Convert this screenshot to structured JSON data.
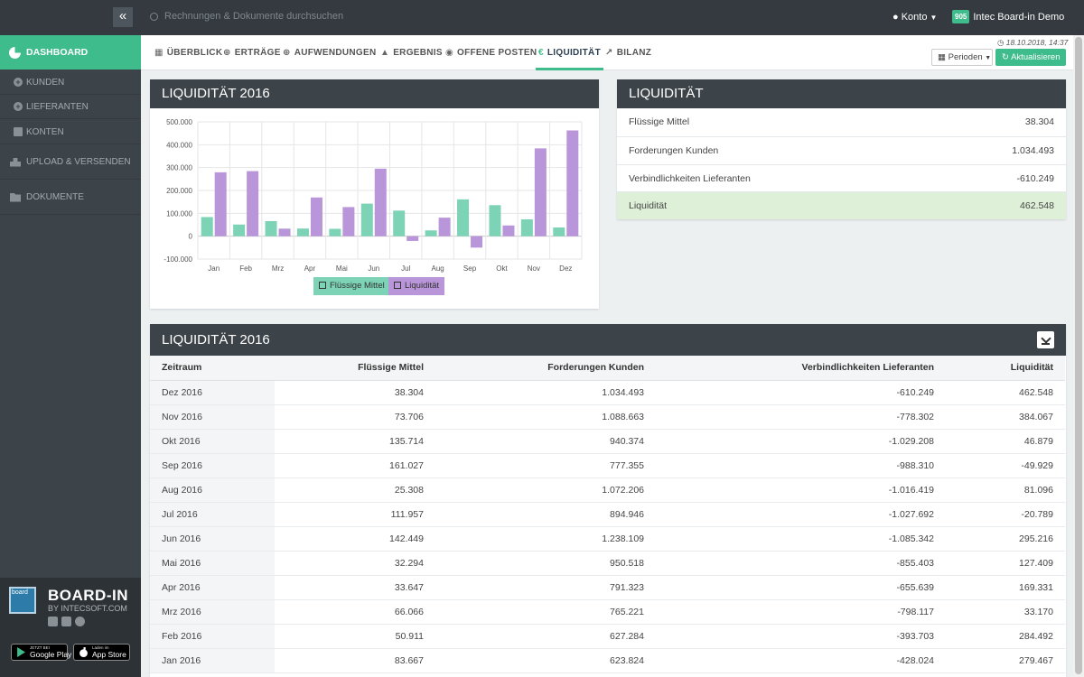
{
  "sidebar": {
    "dashboard": "DASHBOARD",
    "kunden": "KUNDEN",
    "lieferanten": "LIEFERANTEN",
    "konten": "KONTEN",
    "upload": "UPLOAD & VERSENDEN",
    "dokumente": "DOKUMENTE",
    "brand": "BOARD-IN",
    "brand_sub": "BY INTECSOFT.COM",
    "logo_text": "board",
    "google_small": "JETZT BEI",
    "google_big": "Google Play",
    "apple_small": "Laden im",
    "apple_big": "App Store"
  },
  "topbar": {
    "search_placeholder": "Rechnungen & Dokumente durchsuchen",
    "konto": "Konto",
    "company_badge": "905",
    "company": "Intec Board-in Demo"
  },
  "tabs": {
    "ueberblick": "ÜBERBLICK",
    "ertraege": "ERTRÄGE",
    "aufwendungen": "AUFWENDUNGEN",
    "ergebnis": "ERGEBNIS",
    "offene_posten": "OFFENE POSTEN",
    "liquiditaet": "LIQUIDITÄT",
    "bilanz": "BILANZ"
  },
  "toolbar": {
    "timestamp": "18.10.2018, 14:37",
    "perioden": "Perioden",
    "aktualisieren": "Aktualisieren"
  },
  "chart_panel": {
    "title": "LIQUIDITÄT 2016"
  },
  "chart_data": {
    "type": "bar",
    "categories": [
      "Jan",
      "Feb",
      "Mrz",
      "Apr",
      "Mai",
      "Jun",
      "Jul",
      "Aug",
      "Sep",
      "Okt",
      "Nov",
      "Dez"
    ],
    "series": [
      {
        "name": "Flüssige Mittel",
        "color": "#7dd3b6",
        "values": [
          83667,
          50911,
          66066,
          33647,
          32294,
          142449,
          111957,
          25308,
          161027,
          135714,
          73706,
          38304
        ]
      },
      {
        "name": "Liquidität",
        "color": "#b995d9",
        "values": [
          279467,
          284492,
          33170,
          169331,
          127409,
          295216,
          -20789,
          81096,
          -49929,
          46879,
          384067,
          462548
        ]
      }
    ],
    "yticks": [
      "500.000",
      "400.000",
      "300.000",
      "200.000",
      "100.000",
      "0",
      "-100.000"
    ],
    "ylim": [
      -100000,
      500000
    ],
    "grid": true,
    "legend": "bottom"
  },
  "summary": {
    "title": "LIQUIDITÄT",
    "rows": [
      {
        "label": "Flüssige Mittel",
        "value": "38.304"
      },
      {
        "label": "Forderungen Kunden",
        "value": "1.034.493"
      },
      {
        "label": "Verbindlichkeiten Lieferanten",
        "value": "-610.249"
      },
      {
        "label": "Liquidität",
        "value": "462.548"
      }
    ]
  },
  "table": {
    "title": "LIQUIDITÄT 2016",
    "headers": [
      "Zeitraum",
      "Flüssige Mittel",
      "Forderungen Kunden",
      "Verbindlichkeiten Lieferanten",
      "Liquidität"
    ],
    "rows": [
      [
        "Dez 2016",
        "38.304",
        "1.034.493",
        "-610.249",
        "462.548"
      ],
      [
        "Nov 2016",
        "73.706",
        "1.088.663",
        "-778.302",
        "384.067"
      ],
      [
        "Okt 2016",
        "135.714",
        "940.374",
        "-1.029.208",
        "46.879"
      ],
      [
        "Sep 2016",
        "161.027",
        "777.355",
        "-988.310",
        "-49.929"
      ],
      [
        "Aug 2016",
        "25.308",
        "1.072.206",
        "-1.016.419",
        "81.096"
      ],
      [
        "Jul 2016",
        "111.957",
        "894.946",
        "-1.027.692",
        "-20.789"
      ],
      [
        "Jun 2016",
        "142.449",
        "1.238.109",
        "-1.085.342",
        "295.216"
      ],
      [
        "Mai 2016",
        "32.294",
        "950.518",
        "-855.403",
        "127.409"
      ],
      [
        "Apr 2016",
        "33.647",
        "791.323",
        "-655.639",
        "169.331"
      ],
      [
        "Mrz 2016",
        "66.066",
        "765.221",
        "-798.117",
        "33.170"
      ],
      [
        "Feb 2016",
        "50.911",
        "627.284",
        "-393.703",
        "284.492"
      ],
      [
        "Jan 2016",
        "83.667",
        "623.824",
        "-428.024",
        "279.467"
      ]
    ]
  }
}
